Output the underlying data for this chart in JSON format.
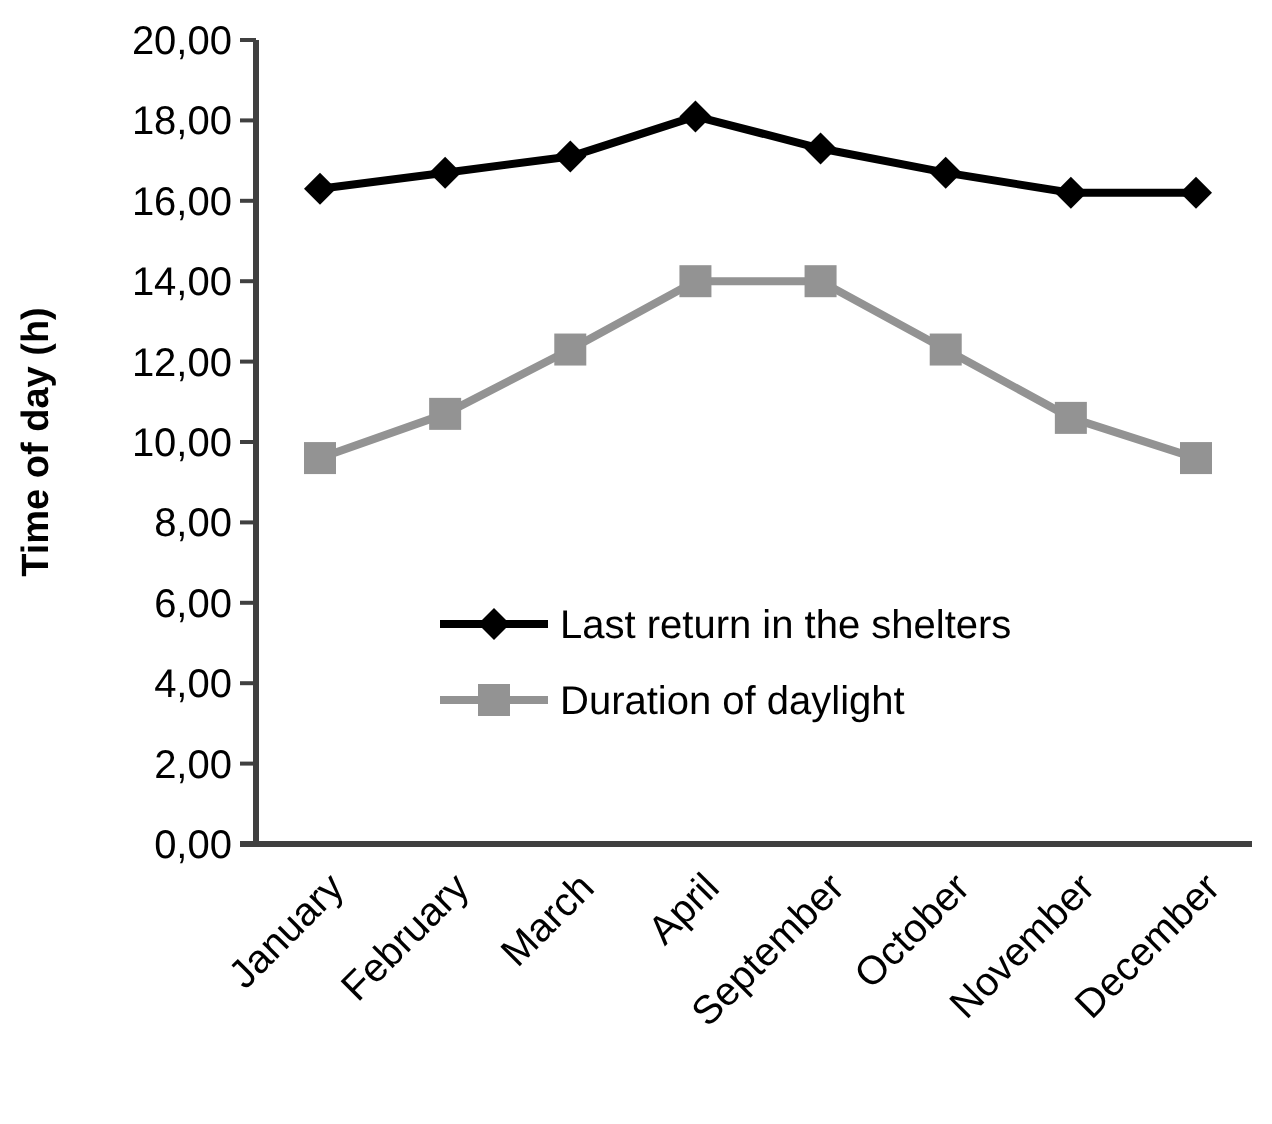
{
  "chart_data": {
    "type": "line",
    "ylabel": "Time of day (h)",
    "categories": [
      "January",
      "February",
      "March",
      "April",
      "September",
      "October",
      "November",
      "December"
    ],
    "series": [
      {
        "name": "Last return in the shelters",
        "color": "#000000",
        "marker": "diamond",
        "values": [
          16.3,
          16.7,
          17.1,
          18.1,
          17.3,
          16.7,
          16.2,
          16.2
        ]
      },
      {
        "name": "Duration of daylight",
        "color": "#939393",
        "marker": "square",
        "values": [
          9.6,
          10.7,
          12.3,
          14.0,
          14.0,
          12.3,
          10.6,
          9.6
        ]
      }
    ],
    "ylim": [
      0,
      20
    ],
    "yticks": [
      {
        "value": 0,
        "label": "0,00"
      },
      {
        "value": 2,
        "label": "2,00"
      },
      {
        "value": 4,
        "label": "4,00"
      },
      {
        "value": 6,
        "label": "6,00"
      },
      {
        "value": 8,
        "label": "8,00"
      },
      {
        "value": 10,
        "label": "10,00"
      },
      {
        "value": 12,
        "label": "12,00"
      },
      {
        "value": 14,
        "label": "14,00"
      },
      {
        "value": 16,
        "label": "16,00"
      },
      {
        "value": 18,
        "label": "18,00"
      },
      {
        "value": 20,
        "label": "20,00"
      }
    ],
    "grid": false,
    "legend": "bottom",
    "line_style": "solid"
  }
}
